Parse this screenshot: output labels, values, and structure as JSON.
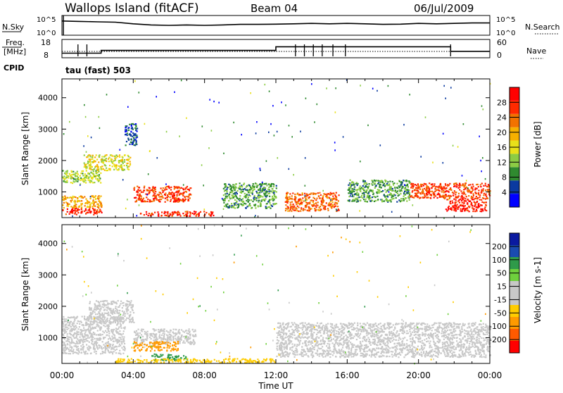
{
  "header": {
    "title": "Wallops Island (fitACF)",
    "beam": "Beam 04",
    "date": "06/Jul/2009"
  },
  "summary_panels": {
    "nsky_label": "N.Sky",
    "nsky_ticks": [
      "10^5",
      "10^0"
    ],
    "nsearch_label": "N.Search",
    "nsearch_ticks": [
      "10^5",
      "10^0"
    ],
    "freq_label": "Freq.",
    "freq_unit": "[MHz]",
    "freq_ticks": [
      "18",
      "8"
    ],
    "nave_label": "Nave",
    "nave_ticks": [
      "60",
      "0"
    ],
    "cpid_label": "CPID",
    "cpid_value": "tau (fast) 503"
  },
  "colors": {
    "power_scale": [
      "#0000ff",
      "#0b3aa0",
      "#2f8a2f",
      "#8ccc44",
      "#e8e01a",
      "#f7b000",
      "#f27200",
      "#ff2a00",
      "#ff0000"
    ],
    "velocity_scale": [
      "#ff0000",
      "#ff5a00",
      "#ff9a00",
      "#ffcc00",
      "#c8c8c8",
      "#c8c8c8",
      "#6fd03d",
      "#2f9a4a",
      "#1a4bb0",
      "#0a1aa0"
    ],
    "ground_scatter": "#c8c8c8"
  },
  "chart_data": [
    {
      "type": "heatmap",
      "name": "power",
      "ylabel": "Slant Range [km]",
      "xlabel": "",
      "x_ticks": [
        "00:00",
        "04:00",
        "08:00",
        "12:00",
        "16:00",
        "20:00",
        "00:00"
      ],
      "y_ticks": [
        1000,
        2000,
        3000,
        4000
      ],
      "xlim": [
        0,
        24
      ],
      "ylim": [
        180,
        4600
      ],
      "colorbar": {
        "label": "Power [dB]",
        "ticks": [
          4,
          8,
          12,
          16,
          20,
          24,
          28
        ],
        "range": [
          0,
          32
        ]
      },
      "regions": [
        {
          "t": [
            0.0,
            2.2
          ],
          "r": [
            300,
            500
          ],
          "level": 28
        },
        {
          "t": [
            0.0,
            2.2
          ],
          "r": [
            500,
            900
          ],
          "level": 20
        },
        {
          "t": [
            0.0,
            2.2
          ],
          "r": [
            1300,
            1700
          ],
          "level": 14
        },
        {
          "t": [
            1.2,
            3.8
          ],
          "r": [
            1700,
            2200
          ],
          "level": 16
        },
        {
          "t": [
            3.5,
            4.2
          ],
          "r": [
            2500,
            3200
          ],
          "level": 6
        },
        {
          "t": [
            4.0,
            7.2
          ],
          "r": [
            700,
            1200
          ],
          "level": 26
        },
        {
          "t": [
            4.3,
            8.5
          ],
          "r": [
            250,
            400
          ],
          "level": 28
        },
        {
          "t": [
            9.0,
            12.0
          ],
          "r": [
            500,
            1300
          ],
          "level": 10
        },
        {
          "t": [
            12.5,
            15.5
          ],
          "r": [
            400,
            1000
          ],
          "level": 24
        },
        {
          "t": [
            16.0,
            19.5
          ],
          "r": [
            700,
            1400
          ],
          "level": 10
        },
        {
          "t": [
            19.5,
            24.0
          ],
          "r": [
            800,
            1300
          ],
          "level": 26
        },
        {
          "t": [
            21.5,
            23.8
          ],
          "r": [
            400,
            800
          ],
          "level": 28
        }
      ]
    },
    {
      "type": "heatmap",
      "name": "velocity",
      "ylabel": "Slant Range [km]",
      "xlabel": "Time UT",
      "x_ticks": [
        "00:00",
        "04:00",
        "08:00",
        "12:00",
        "16:00",
        "20:00",
        "00:00"
      ],
      "y_ticks": [
        1000,
        2000,
        3000,
        4000
      ],
      "xlim": [
        0,
        24
      ],
      "ylim": [
        180,
        4600
      ],
      "colorbar": {
        "label": "Velocity [m s-1]",
        "ticks": [
          200,
          100,
          50,
          15,
          -15,
          -50,
          -100,
          -200
        ]
      },
      "regions": [
        {
          "t": [
            0.0,
            3.5
          ],
          "r": [
            500,
            1700
          ],
          "v": 0
        },
        {
          "t": [
            1.5,
            4.0
          ],
          "r": [
            1500,
            2200
          ],
          "v": 0
        },
        {
          "t": [
            4.0,
            7.5
          ],
          "r": [
            800,
            1300
          ],
          "v": 0
        },
        {
          "t": [
            4.0,
            6.5
          ],
          "r": [
            600,
            900
          ],
          "v": -60
        },
        {
          "t": [
            5.0,
            7.0
          ],
          "r": [
            300,
            500
          ],
          "v": 60
        },
        {
          "t": [
            3.0,
            12.0
          ],
          "r": [
            220,
            350
          ],
          "v": -40
        },
        {
          "t": [
            12.0,
            24.0
          ],
          "r": [
            400,
            1500
          ],
          "v": 0
        }
      ]
    }
  ],
  "summary_series": {
    "nsky": [
      0.72,
      0.7,
      0.68,
      0.66,
      0.58,
      0.52,
      0.5,
      0.52,
      0.5,
      0.52,
      0.55,
      0.55,
      0.56,
      0.58,
      0.6,
      0.58,
      0.6,
      0.58,
      0.55,
      0.56,
      0.6,
      0.58,
      0.6,
      0.62,
      0.62
    ],
    "freq_steps": [
      [
        0,
        10.5
      ],
      [
        2.2,
        12
      ],
      [
        12,
        14
      ],
      [
        21.8,
        11.5
      ],
      [
        24,
        11.5
      ]
    ]
  }
}
